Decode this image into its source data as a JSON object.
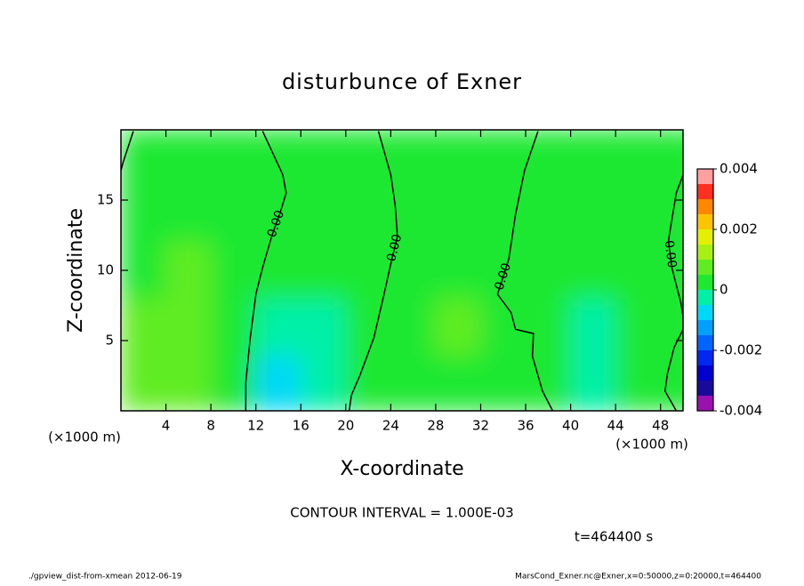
{
  "chart_data": {
    "type": "contour",
    "title": "disturbunce of Exner",
    "x_label": "X-coordinate",
    "y_label": "Z-coordinate",
    "x_unit_label": "(×1000 m)",
    "y_unit_label": "(×1000 m)",
    "xlim": [
      0,
      50
    ],
    "ylim": [
      0,
      20
    ],
    "xticks": [
      4,
      8,
      12,
      16,
      20,
      24,
      28,
      32,
      36,
      40,
      44,
      48
    ],
    "yticks": [
      5,
      10,
      15
    ],
    "x": [
      2,
      6,
      10,
      14,
      18,
      22,
      26,
      30,
      34,
      38,
      42,
      46,
      50
    ],
    "z": [
      2,
      6,
      10,
      14,
      18
    ],
    "values": [
      [
        0.00075,
        0.00075,
        0.00025,
        -0.00075,
        -0.00025,
        0.00025,
        0.00025,
        0.00025,
        0.00025,
        0.00025,
        -0.00025,
        0.00025,
        0.00025
      ],
      [
        0.00075,
        0.00075,
        0.00025,
        -0.00025,
        -0.00025,
        0.00025,
        0.00025,
        0.00075,
        0.00025,
        0.00025,
        -0.00025,
        0.00025,
        0.00025
      ],
      [
        0.00025,
        0.00075,
        0.00025,
        0.00025,
        0.00025,
        0.00025,
        0.00025,
        0.00025,
        0.00025,
        0.00025,
        0.00025,
        0.00025,
        0.00025
      ],
      [
        0.00025,
        0.00025,
        0.00025,
        0.00025,
        0.00025,
        0.00025,
        0.00025,
        0.00025,
        0.00025,
        0.00025,
        0.00025,
        0.00025,
        0.00025
      ],
      [
        0.00025,
        0.00025,
        0.00025,
        0.00025,
        0.00025,
        0.00025,
        0.00025,
        0.00025,
        0.00025,
        0.00025,
        0.00025,
        0.00025,
        0.00025
      ]
    ],
    "contours": [
      {
        "x": [
          1.1,
          0.2,
          0
        ],
        "z": [
          19.9,
          17.7,
          17.1
        ]
      },
      {
        "label": "0.00",
        "x": [
          12.6,
          14.4,
          14.7,
          14.2,
          13.4,
          12.6,
          12.0,
          11.5,
          11.1,
          11.1
        ],
        "z": [
          19.9,
          16.8,
          15.5,
          14.2,
          12.4,
          10.2,
          8.3,
          5.2,
          2.0,
          0
        ]
      },
      {
        "label": "0.00",
        "x": [
          22.9,
          24.0,
          24.4,
          24.6,
          24.1,
          23.4,
          22.5,
          21.3,
          20.5,
          20.3
        ],
        "z": [
          19.9,
          16.8,
          14.6,
          12.4,
          10.8,
          8.3,
          5.2,
          2.6,
          1.1,
          0
        ]
      },
      {
        "label": "0.00",
        "x": [
          37.1,
          35.9,
          35.1,
          34.5,
          33.5,
          34.7,
          35.1,
          36.7,
          36.6,
          37.5,
          38.4
        ],
        "z": [
          19.9,
          17.1,
          14.0,
          10.8,
          8.3,
          7.0,
          5.8,
          5.5,
          3.9,
          1.4,
          0
        ]
      },
      {
        "label": "0.00",
        "x": [
          50,
          49.4,
          49.0,
          48.7,
          49.0,
          49.8,
          50,
          50,
          49.2,
          48.6,
          48.4,
          49.4
        ],
        "z": [
          16.8,
          15.5,
          13.6,
          12.1,
          10.2,
          7.7,
          6.7,
          5.8,
          4.5,
          2.6,
          1.4,
          0
        ]
      }
    ],
    "colorbar": {
      "lim": [
        -0.004,
        0.004
      ],
      "ticks": [
        -0.004,
        -0.002,
        0,
        0.002,
        0.004
      ],
      "bins": [
        -0.004,
        -0.0035,
        -0.003,
        -0.0025,
        -0.002,
        -0.0015,
        -0.001,
        -0.0005,
        0,
        0.0005,
        0.001,
        0.0015,
        0.002,
        0.0025,
        0.003,
        0.0035,
        0.004
      ],
      "colors": [
        "#9a10b0",
        "#1a0a9a",
        "#0000cc",
        "#0028ee",
        "#0064ff",
        "#00a0ff",
        "#00d8f8",
        "#00f0a8",
        "#1ee830",
        "#60ec22",
        "#a8f014",
        "#e4f000",
        "#ffc400",
        "#ff8800",
        "#ff3020",
        "#ffa0a0"
      ]
    },
    "contour_interval": "CONTOUR INTERVAL = 1.000E-03",
    "time_label": "t=464400 s",
    "footer_left": "./gpview_dist-from-xmean  2012-06-19",
    "footer_right": "MarsCond_Exner.nc@Exner,x=0:50000,z=0:20000,t=464400"
  }
}
